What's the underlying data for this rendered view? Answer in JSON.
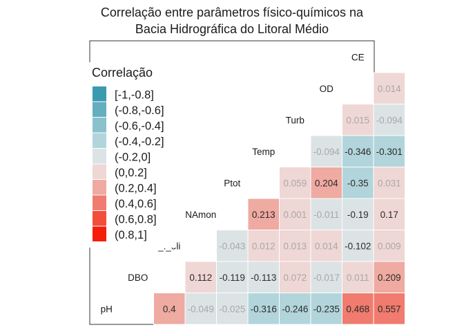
{
  "chart_data": {
    "type": "heatmap",
    "title_lines": [
      "Correlação entre parâmetros físico-químicos na",
      "Bacia Hidrográfica do Litoral Médio"
    ],
    "variables": [
      "pH",
      "DBO",
      "E_coli",
      "NAmon",
      "Ptot",
      "Temp",
      "Turb",
      "OD",
      "CE"
    ],
    "variable_display": [
      "pH",
      "DBO",
      "_._oli",
      "NAmon",
      "Ptot",
      "Temp",
      "Turb",
      "OD",
      "CE"
    ],
    "matrix": [
      [
        null,
        0.4,
        -0.049,
        -0.025,
        -0.316,
        -0.246,
        -0.235,
        0.468,
        0.557
      ],
      [
        null,
        null,
        0.112,
        -0.119,
        -0.113,
        0.072,
        -0.017,
        0.011,
        0.209
      ],
      [
        null,
        null,
        null,
        -0.043,
        0.012,
        0.013,
        0.014,
        -0.102,
        0.009
      ],
      [
        null,
        null,
        null,
        null,
        0.213,
        0.001,
        -0.011,
        -0.19,
        0.17
      ],
      [
        null,
        null,
        null,
        null,
        null,
        0.059,
        0.204,
        -0.35,
        0.031
      ],
      [
        null,
        null,
        null,
        null,
        null,
        null,
        -0.094,
        -0.346,
        -0.301
      ],
      [
        null,
        null,
        null,
        null,
        null,
        null,
        null,
        0.015,
        -0.094
      ],
      [
        null,
        null,
        null,
        null,
        null,
        null,
        null,
        null,
        0.014
      ]
    ],
    "labels": [
      [
        null,
        "0.4",
        "-0.049",
        "-0.025",
        "-0.316",
        "-0.246",
        "-0.235",
        "0.468",
        "0.557"
      ],
      [
        null,
        null,
        "0.112",
        "-0.119",
        "-0.113",
        "0.072",
        "-0.017",
        "0.011",
        "0.209"
      ],
      [
        null,
        null,
        null,
        "-0.043",
        "0.012",
        "0.013",
        "0.014",
        "-0.102",
        "0.009"
      ],
      [
        null,
        null,
        null,
        null,
        "0.213",
        "0.001",
        "-0.011",
        "-0.19",
        "0.17"
      ],
      [
        null,
        null,
        null,
        null,
        null,
        "0.059",
        "0.204",
        "-0.35",
        "0.031"
      ],
      [
        null,
        null,
        null,
        null,
        null,
        null,
        "-0.094",
        "-0.346",
        "-0.301"
      ],
      [
        null,
        null,
        null,
        null,
        null,
        null,
        null,
        "0.015",
        "-0.094"
      ],
      [
        null,
        null,
        null,
        null,
        null,
        null,
        null,
        null,
        "0.014"
      ]
    ],
    "legend": {
      "title": "Correlação",
      "placement": "left",
      "bins": [
        {
          "label": "[-1,-0.8]",
          "color": "#3a9bb0"
        },
        {
          "label": "(-0.8,-0.6]",
          "color": "#63aebf"
        },
        {
          "label": "(-0.6,-0.4]",
          "color": "#89c1cd"
        },
        {
          "label": "(-0.4,-0.2]",
          "color": "#b2d5dc"
        },
        {
          "label": "(-0.2,0]",
          "color": "#dbe3e5"
        },
        {
          "label": "(0,0.2]",
          "color": "#efd7d5"
        },
        {
          "label": "(0.2,0.4]",
          "color": "#efaaa1"
        },
        {
          "label": "(0.4,0.6]",
          "color": "#f07b6e"
        },
        {
          "label": "(0.6,0.8]",
          "color": "#f24e3c"
        },
        {
          "label": "(0.8,1]",
          "color": "#f41e0b"
        }
      ]
    },
    "text_colors": {
      "strong": "#2b2b2b",
      "faint": "#a8a8a8"
    }
  }
}
